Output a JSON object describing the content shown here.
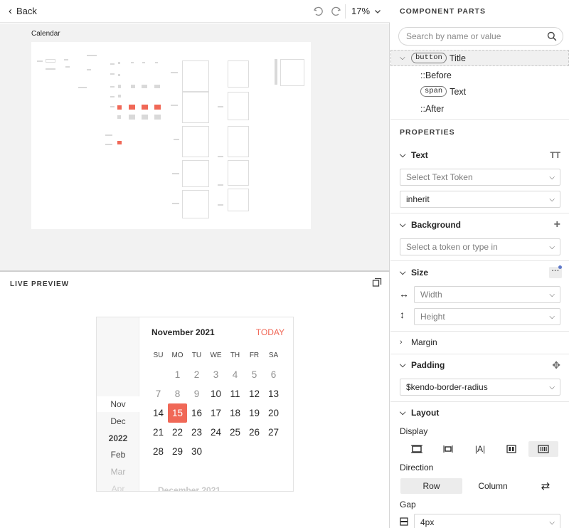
{
  "topbar": {
    "back_label": "Back",
    "zoom": "17%"
  },
  "canvas": {
    "label": "Calendar"
  },
  "preview": {
    "title": "LIVE PREVIEW",
    "calendar": {
      "title": "November 2021",
      "today": "TODAY",
      "weekdays": [
        "SU",
        "MO",
        "TU",
        "WE",
        "TH",
        "FR",
        "SA"
      ],
      "weeks": [
        [
          "",
          "1",
          "2",
          "3",
          "4",
          "5",
          "6"
        ],
        [
          "7",
          "8",
          "9",
          "10",
          "11",
          "12",
          "13"
        ],
        [
          "14",
          "15",
          "16",
          "17",
          "18",
          "19",
          "20"
        ],
        [
          "21",
          "22",
          "23",
          "24",
          "25",
          "26",
          "27"
        ],
        [
          "28",
          "29",
          "30",
          "",
          "",
          "",
          ""
        ]
      ],
      "selected_day": "15",
      "nav": [
        "Nov",
        "Dec",
        "2022",
        "Feb",
        "Mar",
        "Apr"
      ],
      "next_title": "December 2021"
    }
  },
  "panel": {
    "component_parts": {
      "title": "COMPONENT PARTS",
      "search_placeholder": "Search by name or value",
      "tree": [
        {
          "tag": "button",
          "label": "Title"
        },
        {
          "tag": "",
          "label": "::Before"
        },
        {
          "tag": "span",
          "label": "Text"
        },
        {
          "tag": "",
          "label": "::After"
        }
      ]
    },
    "properties": {
      "title": "PROPERTIES",
      "text": {
        "label": "Text",
        "token_placeholder": "Select Text Token",
        "value": "inherit"
      },
      "background": {
        "label": "Background",
        "placeholder": "Select a token or type in"
      },
      "size": {
        "label": "Size",
        "width_placeholder": "Width",
        "height_placeholder": "Height"
      },
      "margin": {
        "label": "Margin"
      },
      "padding": {
        "label": "Padding",
        "value": "$kendo-border-radius"
      },
      "layout": {
        "label": "Layout",
        "display_label": "Display",
        "direction_label": "Direction",
        "direction_row": "Row",
        "direction_column": "Column",
        "gap_label": "Gap",
        "gap_value": "4px"
      }
    }
  },
  "colors": {
    "accent": "#f06857",
    "canvas_bg": "#f2f2f2"
  },
  "icons": [
    "chevron-left-icon",
    "undo-icon",
    "redo-icon",
    "chevron-down-icon",
    "search-icon",
    "popout-icon",
    "text-token-icon",
    "plus-icon",
    "more-icon",
    "move-icon",
    "swap-icon"
  ]
}
